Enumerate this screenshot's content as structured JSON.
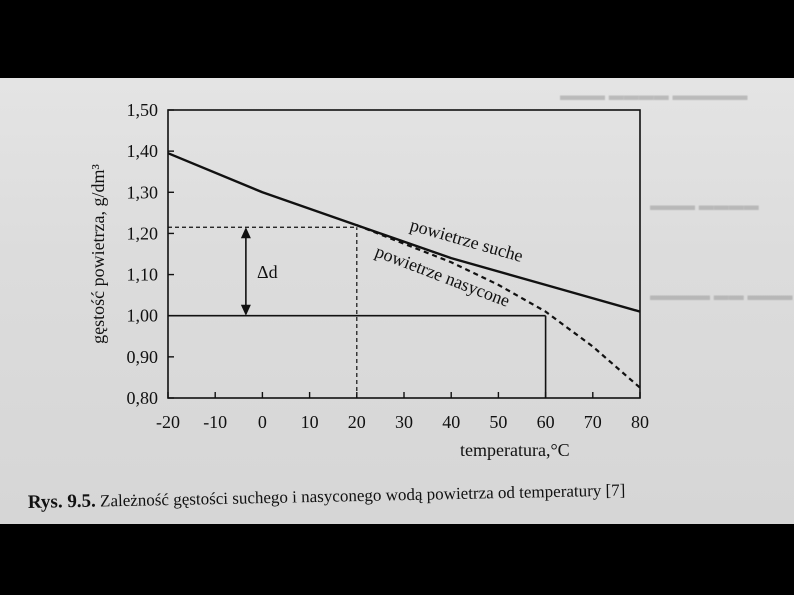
{
  "figure": {
    "caption_label": "Rys. 9.5.",
    "caption_text": " Zależność gęstości suchego i nasyconego wodą powietrza od temperatury [7]"
  },
  "chart_data": {
    "type": "line",
    "xlabel": "temperatura,°C",
    "ylabel": "gęstość powietrza, g/dm³",
    "xlim": [
      -20,
      80
    ],
    "ylim": [
      0.8,
      1.5
    ],
    "xticks": [
      -20,
      -10,
      0,
      10,
      20,
      30,
      40,
      50,
      60,
      70,
      80
    ],
    "yticks": [
      0.8,
      0.9,
      1.0,
      1.1,
      1.2,
      1.3,
      1.4,
      1.5
    ],
    "xtick_labels": [
      "-20",
      "-10",
      "0",
      "10",
      "20",
      "30",
      "40",
      "50",
      "60",
      "70",
      "80"
    ],
    "ytick_labels": [
      "0,80",
      "0,90",
      "1,00",
      "1,10",
      "1,20",
      "1,30",
      "1,40",
      "1,50"
    ],
    "grid": false,
    "series": [
      {
        "name": "powietrze suche",
        "style": "solid",
        "x": [
          -20,
          0,
          20,
          40,
          60,
          80
        ],
        "y": [
          1.395,
          1.3,
          1.22,
          1.14,
          1.075,
          1.01
        ]
      },
      {
        "name": "powietrze nasycone",
        "style": "dashed",
        "x": [
          20,
          30,
          40,
          50,
          60,
          70,
          80
        ],
        "y": [
          1.22,
          1.175,
          1.13,
          1.075,
          1.01,
          0.925,
          0.825
        ]
      }
    ],
    "reference_lines": [
      {
        "type": "horizontal",
        "style": "dashed",
        "y": 1.215,
        "x_from": -20,
        "x_to": 20
      },
      {
        "type": "vertical",
        "style": "dashed",
        "x": 20,
        "y_from": 0.8,
        "y_to": 1.215
      },
      {
        "type": "horizontal",
        "style": "solid",
        "y": 1.0,
        "x_from": -20,
        "x_to": 60
      },
      {
        "type": "vertical",
        "style": "solid",
        "x": 60,
        "y_from": 0.8,
        "y_to": 1.0
      }
    ],
    "annotations": [
      {
        "text": "Δd",
        "kind": "double-arrow",
        "x": -3.5,
        "y_from": 1.0,
        "y_to": 1.215
      }
    ]
  }
}
